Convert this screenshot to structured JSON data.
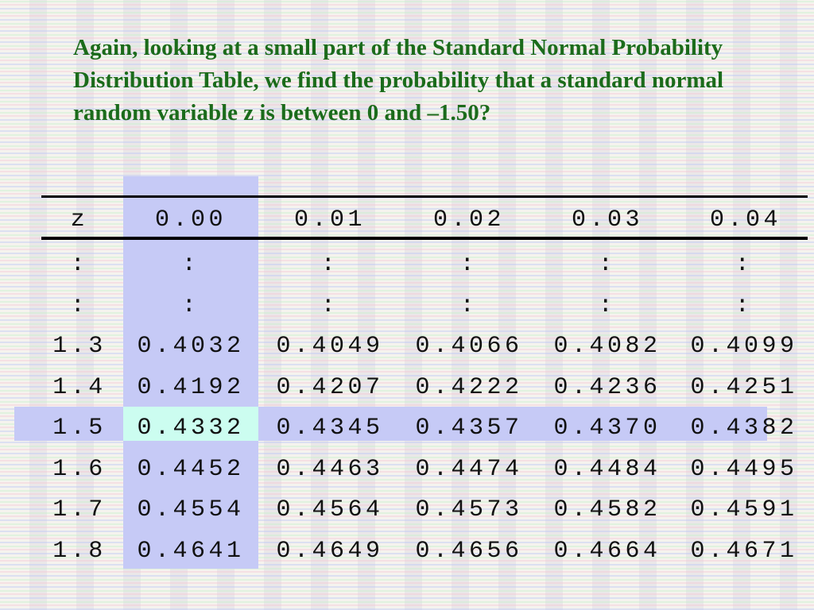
{
  "title": "Again, looking at a small part of the Standard Normal Probability Distribution Table, we find the probability that a standard normal random variable z is between 0 and –1.50?",
  "table": {
    "header": [
      "z",
      "0.00",
      "0.01",
      "0.02",
      "0.03",
      "0.04"
    ],
    "rows": [
      [
        ":",
        ":",
        ":",
        ":",
        ":",
        ":"
      ],
      [
        ":",
        ":",
        ":",
        ":",
        ":",
        ":"
      ],
      [
        "1.3",
        "0.4032",
        "0.4049",
        "0.4066",
        "0.4082",
        "0.4099"
      ],
      [
        "1.4",
        "0.4192",
        "0.4207",
        "0.4222",
        "0.4236",
        "0.4251"
      ],
      [
        "1.5",
        "0.4332",
        "0.4345",
        "0.4357",
        "0.4370",
        "0.4382"
      ],
      [
        "1.6",
        "0.4452",
        "0.4463",
        "0.4474",
        "0.4484",
        "0.4495"
      ],
      [
        "1.7",
        "0.4554",
        "0.4564",
        "0.4573",
        "0.4582",
        "0.4591"
      ],
      [
        "1.8",
        "0.4641",
        "0.4649",
        "0.4656",
        "0.4664",
        "0.4671"
      ]
    ]
  }
}
